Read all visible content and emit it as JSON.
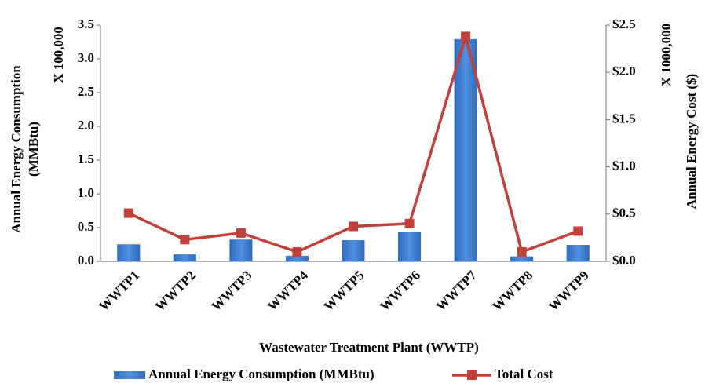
{
  "chart_data": {
    "type": "combo",
    "categories": [
      "WWTP1",
      "WWTP2",
      "WWTP3",
      "WWTP4",
      "WWTP5",
      "WWTP6",
      "WWTP7",
      "WWTP8",
      "WWTP9"
    ],
    "series": [
      {
        "name": "Annual Energy Consumption (MMBtu)",
        "type": "bar",
        "color": "#3c7dd0",
        "values": [
          0.25,
          0.1,
          0.32,
          0.08,
          0.31,
          0.43,
          3.29,
          0.07,
          0.24
        ]
      },
      {
        "name": "Total Cost",
        "type": "line",
        "axis": "y2",
        "color": "#c0403a",
        "values": [
          0.51,
          0.23,
          0.3,
          0.1,
          0.37,
          0.4,
          2.38,
          0.1,
          0.32
        ]
      }
    ],
    "ylim": [
      0,
      3.5
    ],
    "yticks": [
      {
        "value": 0,
        "label": "0.0"
      },
      0.5,
      {
        "value": 1,
        "label": "1.0"
      },
      1.5,
      {
        "value": 2,
        "label": "2.0"
      },
      2.5,
      {
        "value": 3,
        "label": "3.0"
      },
      3.5
    ],
    "y2lim": [
      0,
      2.5
    ],
    "y2ticks": [
      {
        "value": 0,
        "label": "$0.0"
      },
      {
        "value": 0.5,
        "label": "$0.5"
      },
      {
        "value": 1,
        "label": "$1.0"
      },
      {
        "value": 1.5,
        "label": "$1.5"
      },
      {
        "value": 2,
        "label": "$2.0"
      },
      {
        "value": 2.5,
        "label": "$2.5"
      }
    ],
    "ylabel": [
      "Annual Energy Consumption",
      "(MMBtu)"
    ],
    "y_multiplier": "X 100,000",
    "y2label": "Annual Energy Cost ($)",
    "y2_multiplier": "X 1000,000",
    "xlabel": "Wastewater Treatment Plant (WWTP)",
    "grid": false
  }
}
